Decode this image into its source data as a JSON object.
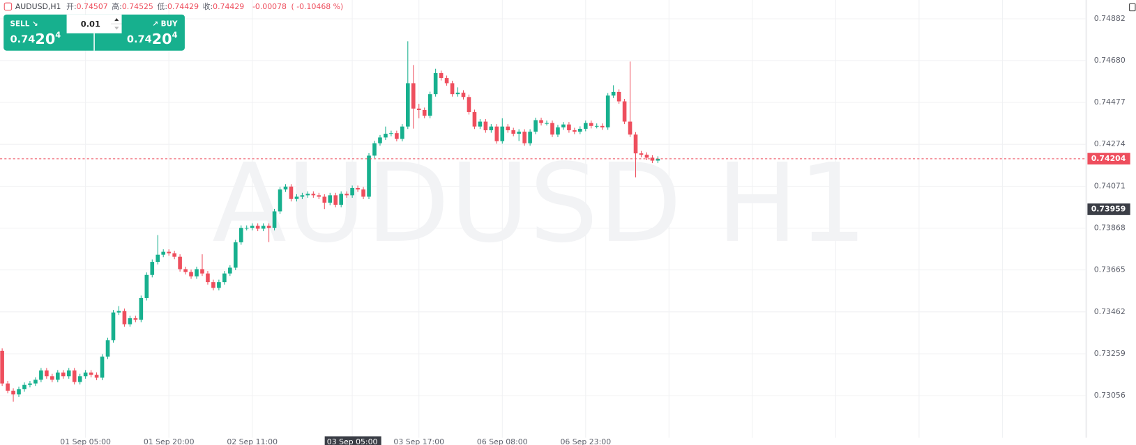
{
  "header": {
    "symbol": "AUDUSD,H1",
    "items": [
      {
        "label": "开:",
        "value": "0.74507"
      },
      {
        "label": "高:",
        "value": "0.74525"
      },
      {
        "label": "低:",
        "value": "0.74429"
      },
      {
        "label": "收:",
        "value": "0.74429"
      }
    ],
    "change": "-0.00078",
    "change_pct": "( -0.10468 %)"
  },
  "trade_panel": {
    "sell": {
      "label": "SELL ↘",
      "price_head": "0.74",
      "price_big": "20",
      "price_tail": "4"
    },
    "buy": {
      "label": "↗ BUY",
      "price_head": "0.74",
      "price_big": "20",
      "price_tail": "4"
    },
    "volume": "0.01"
  },
  "chart_data": {
    "type": "candlestick",
    "watermark": "AUDUSD H1",
    "up_color": "#17b08e",
    "down_color": "#ee4e5d",
    "grid": true,
    "ylim": [
      0.72852,
      0.74973
    ],
    "yticks": [
      0.74882,
      {
        "value": 0.7468,
        "label": "0.74680"
      },
      0.74477,
      0.74274,
      0.74071,
      0.73868,
      0.73665,
      0.73462,
      0.73259,
      0.73056
    ],
    "current_price": 0.74204,
    "cursor_price": 0.73959,
    "categories": [
      null,
      null,
      null,
      null,
      null,
      null,
      null,
      null,
      null,
      null,
      null,
      null,
      null,
      null,
      null,
      "01 Sep 05:00",
      null,
      null,
      null,
      null,
      null,
      null,
      null,
      null,
      null,
      null,
      null,
      null,
      null,
      null,
      "01 Sep 20:00",
      null,
      null,
      null,
      null,
      null,
      null,
      null,
      null,
      null,
      null,
      null,
      null,
      null,
      null,
      "02 Sep 11:00",
      null,
      null,
      null,
      null,
      null,
      null,
      null,
      null,
      null,
      null,
      null,
      null,
      null,
      null,
      null,
      null,
      null,
      {
        "label": "03 Sep 05:00",
        "highlight": true
      },
      null,
      null,
      null,
      null,
      null,
      null,
      null,
      null,
      null,
      null,
      null,
      "03 Sep 17:00",
      null,
      null,
      null,
      null,
      null,
      null,
      null,
      null,
      null,
      null,
      null,
      null,
      null,
      null,
      "06 Sep 08:00",
      null,
      null,
      null,
      null,
      null,
      null,
      null,
      null,
      null,
      null,
      null,
      null,
      null,
      null,
      "06 Sep 23:00",
      null,
      null,
      null,
      null,
      null,
      null,
      null,
      null,
      null,
      null,
      null,
      null,
      null
    ],
    "open": [
      0.73273,
      0.73115,
      0.7308,
      0.73062,
      0.73087,
      0.73108,
      0.73115,
      0.73133,
      0.73178,
      0.7315,
      0.73133,
      0.73168,
      0.7315,
      0.73178,
      0.73122,
      0.7315,
      0.73168,
      0.73157,
      0.73143,
      0.73245,
      0.73325,
      0.73459,
      0.73466,
      0.73402,
      0.73431,
      0.73424,
      0.73529,
      0.73641,
      0.73704,
      0.73739,
      0.73753,
      0.73746,
      0.73729,
      0.73669,
      0.73655,
      0.73634,
      0.73669,
      0.73648,
      0.73606,
      0.73578,
      0.73606,
      0.73648,
      0.73676,
      0.73799,
      0.73869,
      0.73869,
      0.73879,
      0.73865,
      0.73879,
      0.73869,
      0.73949,
      0.74055,
      0.74069,
      0.74009,
      0.7402,
      0.74027,
      0.74034,
      0.74027,
      0.7402,
      0.73991,
      0.74027,
      0.73981,
      0.74034,
      0.74027,
      0.74062,
      0.74055,
      0.7402,
      0.74219,
      0.74279,
      0.74307,
      0.74325,
      0.74328,
      0.743,
      0.7436,
      0.7457,
      0.74447,
      0.7444,
      0.74412,
      0.74517,
      0.74619,
      0.74595,
      0.7457,
      0.74517,
      0.74524,
      0.74503,
      0.7443,
      0.7436,
      0.74384,
      0.74342,
      0.7436,
      0.74289,
      0.7436,
      0.74342,
      0.74325,
      0.74335,
      0.74279,
      0.74335,
      0.74391,
      0.74377,
      0.74377,
      0.74321,
      0.74356,
      0.7437,
      0.74342,
      0.74335,
      0.74349,
      0.74377,
      0.74363,
      0.74363,
      0.74356,
      0.7451,
      0.74528,
      0.74482,
      0.74384,
      0.74321,
      0.7423,
      0.74223,
      0.74209,
      0.74195
    ],
    "high": [
      0.73285,
      0.73127,
      0.73092,
      0.73099,
      0.7312,
      0.73127,
      0.73145,
      0.7319,
      0.7319,
      0.73162,
      0.7318,
      0.7318,
      0.7319,
      0.7319,
      0.73162,
      0.7318,
      0.7318,
      0.73169,
      0.73257,
      0.73337,
      0.73471,
      0.7349,
      0.73478,
      0.73443,
      0.73443,
      0.73541,
      0.73653,
      0.73716,
      0.73834,
      0.73765,
      0.73765,
      0.73758,
      0.73741,
      0.73681,
      0.73667,
      0.73681,
      0.73741,
      0.7366,
      0.73618,
      0.73618,
      0.7366,
      0.73688,
      0.73811,
      0.73881,
      0.73881,
      0.73891,
      0.73891,
      0.73891,
      0.73891,
      0.73961,
      0.74067,
      0.74081,
      0.74081,
      0.74032,
      0.74039,
      0.74046,
      0.74046,
      0.74039,
      0.74032,
      0.74039,
      0.74039,
      0.74046,
      0.74046,
      0.74074,
      0.74074,
      0.74067,
      0.74231,
      0.74291,
      0.74319,
      0.7436,
      0.7434,
      0.7434,
      0.74372,
      0.74773,
      0.74658,
      0.7447,
      0.74452,
      0.74529,
      0.7464,
      0.74631,
      0.74607,
      0.74582,
      0.7455,
      0.74536,
      0.74515,
      0.74442,
      0.74396,
      0.74396,
      0.74372,
      0.74372,
      0.744,
      0.74372,
      0.74354,
      0.74347,
      0.74347,
      0.74347,
      0.74403,
      0.74403,
      0.74389,
      0.74389,
      0.74368,
      0.74382,
      0.74382,
      0.74354,
      0.74361,
      0.74389,
      0.74389,
      0.74375,
      0.74375,
      0.74522,
      0.7456,
      0.7454,
      0.74494,
      0.74675,
      0.74333,
      0.74242,
      0.74235,
      0.74221,
      0.74216
    ],
    "low": [
      0.73103,
      0.73068,
      0.73027,
      0.7305,
      0.73075,
      0.73096,
      0.73103,
      0.73121,
      0.73138,
      0.73121,
      0.73121,
      0.73138,
      0.73138,
      0.7311,
      0.7311,
      0.73138,
      0.73145,
      0.73131,
      0.73131,
      0.73233,
      0.73313,
      0.73447,
      0.7339,
      0.7339,
      0.73412,
      0.73412,
      0.73517,
      0.73629,
      0.73692,
      0.73727,
      0.73734,
      0.73717,
      0.73657,
      0.73643,
      0.73622,
      0.73622,
      0.73636,
      0.73594,
      0.73566,
      0.73566,
      0.73594,
      0.73636,
      0.73664,
      0.73787,
      0.73857,
      0.73857,
      0.73853,
      0.73853,
      0.738,
      0.73857,
      0.73937,
      0.74043,
      0.73997,
      0.73997,
      0.74008,
      0.74015,
      0.74015,
      0.74008,
      0.7396,
      0.73979,
      0.73969,
      0.73969,
      0.74015,
      0.74015,
      0.74043,
      0.74008,
      0.74008,
      0.74207,
      0.74267,
      0.74295,
      0.74313,
      0.74288,
      0.74288,
      0.74348,
      0.7435,
      0.744,
      0.744,
      0.744,
      0.74505,
      0.74583,
      0.74558,
      0.74505,
      0.74505,
      0.74491,
      0.74418,
      0.74348,
      0.74348,
      0.7433,
      0.7433,
      0.74277,
      0.74277,
      0.7433,
      0.74313,
      0.7429,
      0.74267,
      0.74267,
      0.74323,
      0.74365,
      0.74365,
      0.74309,
      0.74309,
      0.74344,
      0.7433,
      0.74323,
      0.74323,
      0.74337,
      0.74351,
      0.74351,
      0.74344,
      0.74344,
      0.74498,
      0.7447,
      0.74372,
      0.74309,
      0.74114,
      0.74211,
      0.74197,
      0.74183,
      0.74183
    ],
    "close": [
      0.73115,
      0.7308,
      0.73062,
      0.73087,
      0.73108,
      0.73115,
      0.73133,
      0.73178,
      0.7315,
      0.73133,
      0.73168,
      0.7315,
      0.73178,
      0.73122,
      0.7315,
      0.73168,
      0.73157,
      0.73143,
      0.73245,
      0.73325,
      0.73459,
      0.73466,
      0.73402,
      0.73431,
      0.73424,
      0.73529,
      0.73641,
      0.73704,
      0.73739,
      0.73753,
      0.73746,
      0.73729,
      0.73669,
      0.73655,
      0.73634,
      0.73669,
      0.73648,
      0.73606,
      0.73578,
      0.73606,
      0.73648,
      0.73676,
      0.73799,
      0.73869,
      0.73869,
      0.73879,
      0.73865,
      0.73879,
      0.73869,
      0.73949,
      0.74055,
      0.74069,
      0.74009,
      0.7402,
      0.74027,
      0.74034,
      0.74027,
      0.7402,
      0.73991,
      0.74027,
      0.73981,
      0.74034,
      0.74027,
      0.74062,
      0.74055,
      0.7402,
      0.74219,
      0.74279,
      0.74307,
      0.74325,
      0.74328,
      0.743,
      0.7436,
      0.7457,
      0.74447,
      0.7444,
      0.74412,
      0.74517,
      0.74619,
      0.74595,
      0.7457,
      0.74517,
      0.74524,
      0.74503,
      0.7443,
      0.7436,
      0.74384,
      0.74342,
      0.7436,
      0.74289,
      0.7436,
      0.74342,
      0.74325,
      0.74335,
      0.74279,
      0.74335,
      0.74391,
      0.74377,
      0.74377,
      0.74321,
      0.74356,
      0.7437,
      0.74342,
      0.74335,
      0.74349,
      0.74377,
      0.74363,
      0.74363,
      0.74356,
      0.7451,
      0.74528,
      0.74482,
      0.74384,
      0.74321,
      0.7423,
      0.74223,
      0.74209,
      0.74195,
      0.74204
    ]
  }
}
